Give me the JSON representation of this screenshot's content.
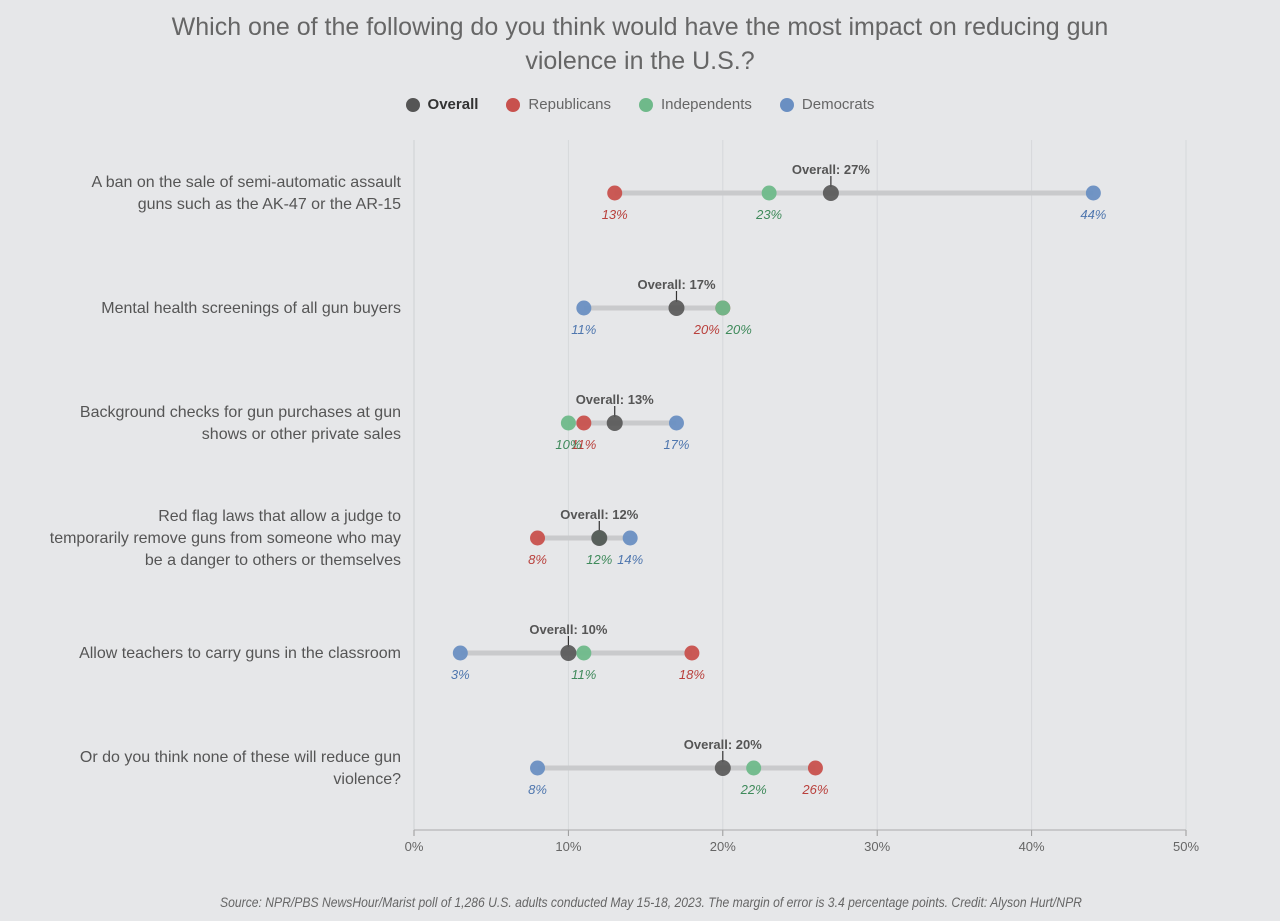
{
  "chart_data": {
    "type": "dot",
    "title": "Which one of the following do you think would have the most impact on reducing gun violence in the U.S.?",
    "legend_placement": "top-center",
    "grid": true,
    "xlim": [
      0,
      50
    ],
    "x_ticks": [
      "0%",
      "10%",
      "20%",
      "30%",
      "40%",
      "50%"
    ],
    "series": [
      {
        "name": "Overall",
        "color": "#555555"
      },
      {
        "name": "Republicans",
        "color": "#c8514d"
      },
      {
        "name": "Independents",
        "color": "#6fb98a"
      },
      {
        "name": "Democrats",
        "color": "#6a8fc2"
      }
    ],
    "categories": [
      {
        "label": "A ban on the sale of semi-automatic assault guns such as the AK-47 or the AR-15",
        "overall": 27,
        "republicans": 13,
        "independents": 23,
        "democrats": 44,
        "overall_label": "Overall: 27%",
        "rep_label": "13%",
        "ind_label": "23%",
        "dem_label": "44%"
      },
      {
        "label": "Mental health screenings of all gun buyers",
        "overall": 17,
        "republicans": 20,
        "independents": 20,
        "democrats": 11,
        "overall_label": "Overall: 17%",
        "rep_label": "20%",
        "ind_label": "20%",
        "dem_label": "11%"
      },
      {
        "label": "Background checks for gun purchases at gun shows or other private sales",
        "overall": 13,
        "republicans": 11,
        "independents": 10,
        "democrats": 17,
        "overall_label": "Overall: 13%",
        "rep_label": "11%",
        "ind_label": "10%",
        "dem_label": "17%"
      },
      {
        "label": "Red flag laws that allow a judge to temporarily remove guns from someone who may be a danger to others or themselves",
        "overall": 12,
        "republicans": 8,
        "independents": 12,
        "democrats": 14,
        "overall_label": "Overall: 12%",
        "rep_label": "8%",
        "ind_label": "12%",
        "dem_label": "14%"
      },
      {
        "label": "Allow teachers to carry guns in the classroom",
        "overall": 10,
        "republicans": 18,
        "independents": 11,
        "democrats": 3,
        "overall_label": "Overall: 10%",
        "rep_label": "18%",
        "ind_label": "11%",
        "dem_label": "3%"
      },
      {
        "label": "Or do you think none of these will reduce gun violence?",
        "overall": 20,
        "republicans": 26,
        "independents": 22,
        "democrats": 8,
        "overall_label": "Overall: 20%",
        "rep_label": "26%",
        "ind_label": "22%",
        "dem_label": "8%"
      }
    ],
    "source": "Source: NPR/PBS NewsHour/Marist poll of 1,286 U.S. adults conducted May 15-18, 2023. The margin of error is 3.4 percentage points. Credit: Alyson Hurt/NPR"
  }
}
